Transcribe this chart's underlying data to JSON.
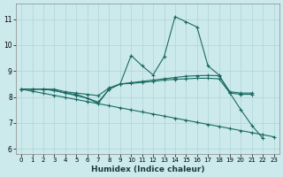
{
  "xlabel": "Humidex (Indice chaleur)",
  "background_color": "#cce9ec",
  "grid_color": "#b0d4d8",
  "line_color": "#1a6b62",
  "xlim": [
    -0.5,
    23.5
  ],
  "ylim": [
    5.8,
    11.6
  ],
  "yticks": [
    6,
    7,
    8,
    9,
    10,
    11
  ],
  "xticks": [
    0,
    1,
    2,
    3,
    4,
    5,
    6,
    7,
    8,
    9,
    10,
    11,
    12,
    13,
    14,
    15,
    16,
    17,
    18,
    19,
    20,
    21,
    22,
    23
  ],
  "line_volatile_y": [
    8.3,
    8.3,
    8.3,
    8.25,
    8.15,
    8.1,
    7.95,
    7.75,
    8.3,
    8.5,
    9.6,
    9.2,
    8.85,
    9.55,
    11.1,
    10.9,
    10.7,
    9.2,
    8.85,
    8.15,
    7.5,
    6.9,
    6.4,
    null
  ],
  "line_flat_upper_y": [
    8.3,
    8.3,
    8.3,
    8.3,
    8.2,
    8.15,
    8.1,
    8.05,
    8.35,
    8.5,
    8.55,
    8.6,
    8.65,
    8.7,
    8.75,
    8.8,
    8.82,
    8.83,
    8.82,
    8.2,
    8.15,
    8.15,
    null,
    null
  ],
  "line_flat_lower_y": [
    8.3,
    8.3,
    8.3,
    8.25,
    8.15,
    8.05,
    7.95,
    7.8,
    8.3,
    8.5,
    8.52,
    8.56,
    8.6,
    8.65,
    8.68,
    8.7,
    8.72,
    8.72,
    8.7,
    8.15,
    8.1,
    8.1,
    null,
    null
  ],
  "line_diagonal_y": [
    8.3,
    8.22,
    8.14,
    8.06,
    7.98,
    7.9,
    7.82,
    7.74,
    7.66,
    7.58,
    7.5,
    7.42,
    7.34,
    7.26,
    7.18,
    7.1,
    7.02,
    6.94,
    6.86,
    6.78,
    6.7,
    6.62,
    6.54,
    6.46
  ]
}
